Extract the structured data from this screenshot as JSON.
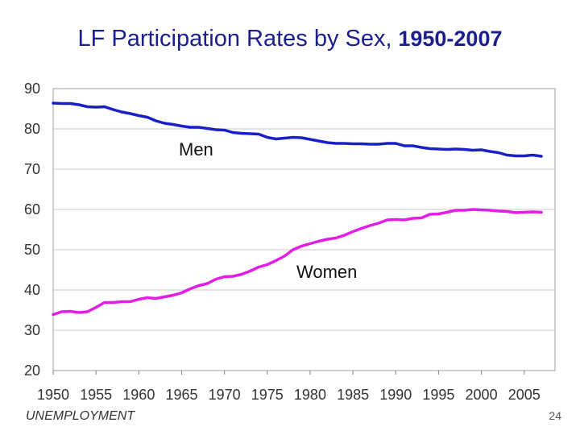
{
  "title": {
    "main": "LF Participation Rates by Sex,",
    "years": "1950-2007"
  },
  "footer": {
    "section": "UNEMPLOYMENT",
    "page_number": "24"
  },
  "colors": {
    "title": "#1a1f8c",
    "men": "#1a1fc8",
    "women": "#e51ce5",
    "grid": "#c8c8c8"
  },
  "chart_data": {
    "type": "line",
    "title": "LF Participation Rates by Sex, 1950-2007",
    "xlabel": "",
    "ylabel": "",
    "xlim": [
      1950,
      2007
    ],
    "ylim": [
      20,
      90
    ],
    "grid": true,
    "x_ticks": [
      1950,
      1955,
      1960,
      1965,
      1970,
      1975,
      1980,
      1985,
      1990,
      1995,
      2000,
      2005
    ],
    "y_ticks": [
      20,
      30,
      40,
      50,
      60,
      70,
      80,
      90
    ],
    "x": [
      1950,
      1951,
      1952,
      1953,
      1954,
      1955,
      1956,
      1957,
      1958,
      1959,
      1960,
      1961,
      1962,
      1963,
      1964,
      1965,
      1966,
      1967,
      1968,
      1969,
      1970,
      1971,
      1972,
      1973,
      1974,
      1975,
      1976,
      1977,
      1978,
      1979,
      1980,
      1981,
      1982,
      1983,
      1984,
      1985,
      1986,
      1987,
      1988,
      1989,
      1990,
      1991,
      1992,
      1993,
      1994,
      1995,
      1996,
      1997,
      1998,
      1999,
      2000,
      2001,
      2002,
      2003,
      2004,
      2005,
      2006,
      2007
    ],
    "series": [
      {
        "name": "Men",
        "label": "Men",
        "color": "#1a1fc8",
        "values": [
          86.4,
          86.3,
          86.3,
          86.0,
          85.5,
          85.4,
          85.5,
          84.8,
          84.2,
          83.8,
          83.3,
          82.9,
          82.0,
          81.4,
          81.1,
          80.7,
          80.4,
          80.4,
          80.1,
          79.8,
          79.7,
          79.1,
          78.9,
          78.8,
          78.7,
          77.9,
          77.5,
          77.7,
          77.9,
          77.8,
          77.4,
          77.0,
          76.6,
          76.4,
          76.4,
          76.3,
          76.3,
          76.2,
          76.2,
          76.4,
          76.4,
          75.8,
          75.8,
          75.4,
          75.1,
          75.0,
          74.9,
          75.0,
          74.9,
          74.7,
          74.8,
          74.4,
          74.1,
          73.5,
          73.3,
          73.3,
          73.5,
          73.2
        ]
      },
      {
        "name": "Women",
        "label": "Women",
        "color": "#e51ce5",
        "values": [
          33.9,
          34.6,
          34.7,
          34.4,
          34.6,
          35.7,
          36.9,
          36.9,
          37.1,
          37.1,
          37.7,
          38.1,
          37.9,
          38.3,
          38.7,
          39.3,
          40.3,
          41.1,
          41.6,
          42.7,
          43.3,
          43.4,
          43.9,
          44.7,
          45.7,
          46.3,
          47.3,
          48.4,
          50.0,
          50.9,
          51.5,
          52.1,
          52.6,
          52.9,
          53.6,
          54.5,
          55.3,
          56.0,
          56.6,
          57.4,
          57.5,
          57.4,
          57.8,
          57.9,
          58.8,
          58.9,
          59.3,
          59.8,
          59.8,
          60.0,
          59.9,
          59.8,
          59.6,
          59.5,
          59.2,
          59.3,
          59.4,
          59.3
        ]
      }
    ]
  }
}
